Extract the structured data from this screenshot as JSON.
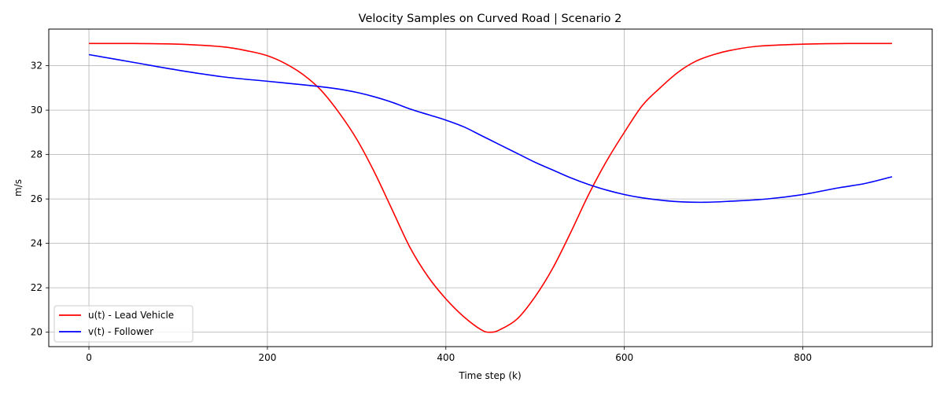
{
  "chart_data": {
    "type": "line",
    "title": "Velocity Samples on Curved Road | Scenario 2",
    "xlabel": "Time step (k)",
    "ylabel": "m/s",
    "xlim": [
      -45,
      945
    ],
    "ylim": [
      19.35,
      33.65
    ],
    "xticks": [
      0,
      200,
      400,
      600,
      800
    ],
    "yticks": [
      20,
      22,
      24,
      26,
      28,
      30,
      32
    ],
    "grid": true,
    "legend_position": "lower-left",
    "series": [
      {
        "name": "u(t) - Lead Vehicle",
        "color": "#ff0000",
        "x": [
          0,
          50,
          100,
          150,
          180,
          200,
          220,
          240,
          260,
          280,
          300,
          320,
          340,
          360,
          380,
          400,
          420,
          440,
          450,
          460,
          480,
          500,
          520,
          540,
          560,
          580,
          600,
          620,
          640,
          660,
          680,
          700,
          720,
          750,
          800,
          850,
          900
        ],
        "y": [
          33.0,
          33.0,
          32.97,
          32.85,
          32.65,
          32.45,
          32.1,
          31.6,
          30.9,
          29.9,
          28.7,
          27.2,
          25.5,
          23.8,
          22.5,
          21.5,
          20.7,
          20.1,
          20.0,
          20.1,
          20.6,
          21.6,
          22.9,
          24.5,
          26.2,
          27.7,
          29.0,
          30.2,
          31.0,
          31.7,
          32.2,
          32.5,
          32.7,
          32.88,
          32.97,
          33.0,
          33.0
        ]
      },
      {
        "name": "v(t) - Follower",
        "color": "#0000ff",
        "x": [
          0,
          50,
          100,
          150,
          200,
          250,
          280,
          300,
          320,
          340,
          360,
          380,
          400,
          420,
          440,
          460,
          480,
          500,
          520,
          540,
          560,
          580,
          600,
          620,
          640,
          660,
          690,
          720,
          760,
          800,
          840,
          870,
          900
        ],
        "y": [
          32.5,
          32.15,
          31.8,
          31.5,
          31.3,
          31.1,
          30.95,
          30.8,
          30.6,
          30.35,
          30.05,
          29.8,
          29.55,
          29.25,
          28.85,
          28.45,
          28.05,
          27.65,
          27.3,
          26.95,
          26.65,
          26.4,
          26.2,
          26.05,
          25.95,
          25.88,
          25.85,
          25.9,
          26.0,
          26.2,
          26.5,
          26.7,
          27.0
        ]
      }
    ]
  }
}
